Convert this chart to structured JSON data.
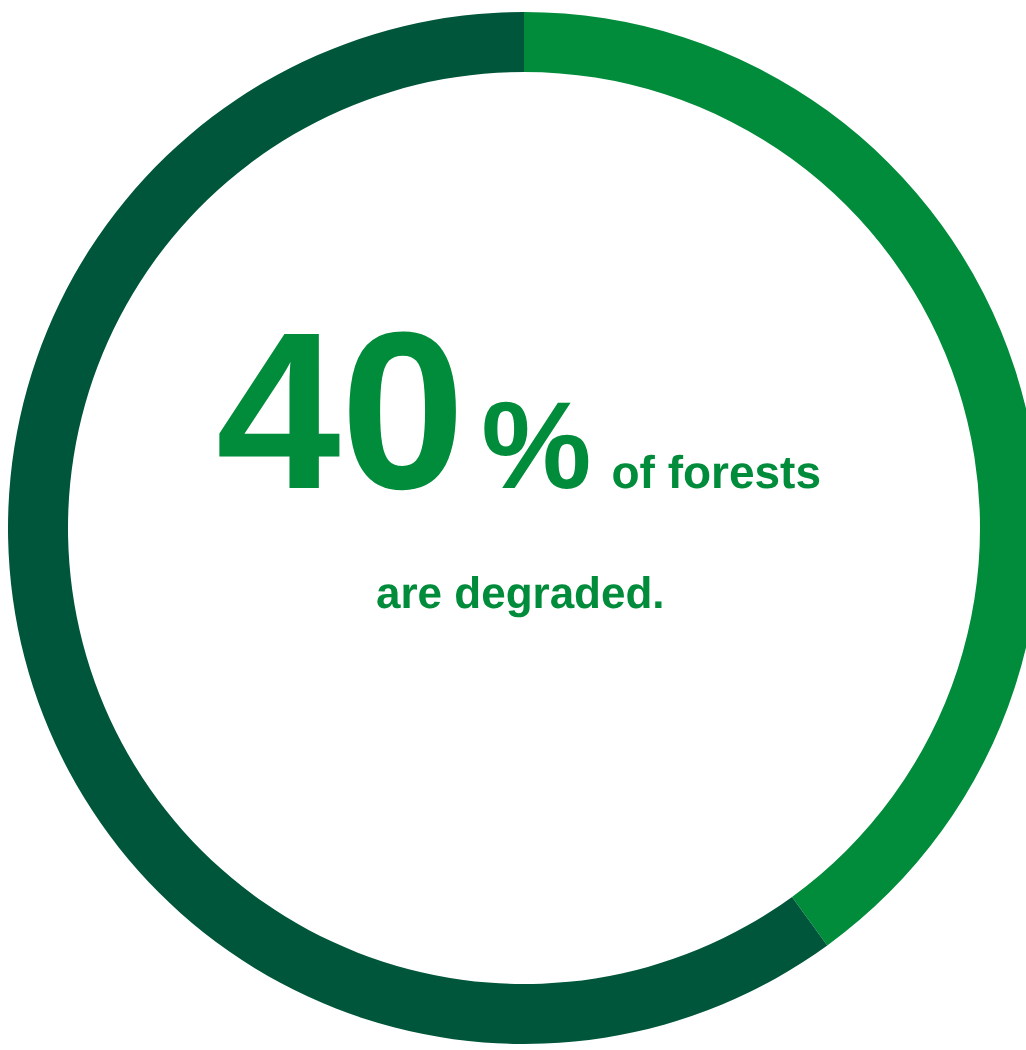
{
  "chart_data": {
    "type": "donut",
    "categories": [
      null,
      null
    ],
    "values": [
      40,
      60
    ],
    "colors": [
      "#008c3a",
      "#00563a"
    ],
    "title": "40% of forests are degraded."
  }
}
